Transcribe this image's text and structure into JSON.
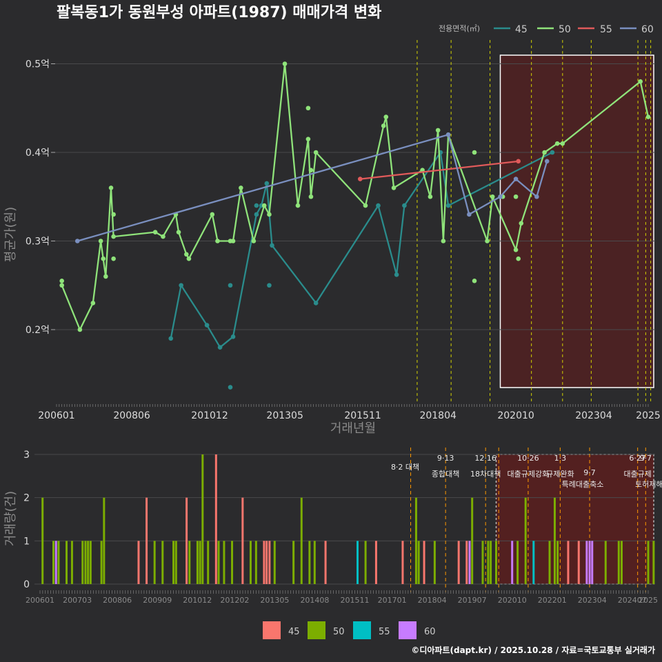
{
  "title": "팔복동1가 동원부성 아파트(1987) 매매가격 변화",
  "credit": "©디아파트(dapt.kr) / 2025.10.28 / 자료=국토교통부 실거래가",
  "colors": {
    "background": "#2b2b2d",
    "grid": "#4a4a4c",
    "s45": "#2a8c8c",
    "s50": "#8fe37a",
    "s55": "#e05a5a",
    "s60": "#7a8fbf",
    "bar45": "#f8766d",
    "bar50": "#7cae00",
    "bar55": "#00bfc4",
    "bar60": "#c77cff",
    "vline": "#d4d400",
    "vline_bottom": "#ff9900",
    "highlight": "#5a1f1f"
  },
  "chart_data": [
    {
      "type": "line",
      "title": "팔복동1가 동원부성 아파트(1987) 매매가격 변화",
      "xlabel": "거래년월",
      "ylabel": "평균가(원)",
      "ylim": [
        0.125,
        0.525
      ],
      "x_ticks": [
        "200601",
        "200806",
        "201012",
        "201305",
        "201511",
        "201804",
        "202010",
        "202304",
        "2025"
      ],
      "y_ticks": [
        {
          "value": 0.2,
          "label": "0.2억"
        },
        {
          "value": 0.3,
          "label": "0.3억"
        },
        {
          "value": 0.4,
          "label": "0.4억"
        },
        {
          "value": 0.5,
          "label": "0.5억"
        }
      ],
      "legend_title": "전용면적(㎡)",
      "legend_position": "top-right",
      "series": [
        {
          "name": "45",
          "color_key": "s45",
          "line": [
            [
              2009.67,
              0.19
            ],
            [
              2010.0,
              0.25
            ],
            [
              2010.83,
              0.205
            ],
            [
              2011.25,
              0.18
            ],
            [
              2011.67,
              0.192
            ],
            [
              2012.42,
              0.33
            ],
            [
              2012.58,
              0.34
            ],
            [
              2012.75,
              0.365
            ],
            [
              2012.92,
              0.295
            ],
            [
              2014.33,
              0.23
            ],
            [
              2016.33,
              0.34
            ],
            [
              2016.92,
              0.262
            ],
            [
              2017.17,
              0.34
            ],
            [
              2018.33,
              0.4
            ],
            [
              2018.58,
              0.34
            ],
            [
              2021.92,
              0.4
            ]
          ],
          "points": [
            [
              2011.58,
              0.25
            ],
            [
              2011.58,
              0.135
            ],
            [
              2012.42,
              0.34
            ],
            [
              2012.83,
              0.25
            ]
          ]
        },
        {
          "name": "50",
          "color_key": "s50",
          "line": [
            [
              2006.17,
              0.25
            ],
            [
              2006.75,
              0.2
            ],
            [
              2007.17,
              0.23
            ],
            [
              2007.42,
              0.3
            ],
            [
              2007.5,
              0.28
            ],
            [
              2007.58,
              0.26
            ],
            [
              2007.75,
              0.36
            ],
            [
              2007.83,
              0.305
            ],
            [
              2009.17,
              0.31
            ],
            [
              2009.42,
              0.305
            ],
            [
              2009.83,
              0.33
            ],
            [
              2009.92,
              0.31
            ],
            [
              2010.17,
              0.285
            ],
            [
              2010.25,
              0.28
            ],
            [
              2011.0,
              0.33
            ],
            [
              2011.17,
              0.3
            ],
            [
              2011.58,
              0.3
            ],
            [
              2011.67,
              0.3
            ],
            [
              2011.92,
              0.36
            ],
            [
              2012.33,
              0.3
            ],
            [
              2012.67,
              0.34
            ],
            [
              2012.83,
              0.33
            ],
            [
              2013.33,
              0.5
            ],
            [
              2013.75,
              0.34
            ],
            [
              2014.08,
              0.415
            ],
            [
              2014.17,
              0.35
            ],
            [
              2014.33,
              0.4
            ],
            [
              2015.92,
              0.34
            ],
            [
              2016.5,
              0.43
            ],
            [
              2016.58,
              0.44
            ],
            [
              2016.83,
              0.36
            ],
            [
              2017.75,
              0.38
            ],
            [
              2018.0,
              0.35
            ],
            [
              2018.25,
              0.425
            ],
            [
              2018.42,
              0.3
            ],
            [
              2018.58,
              0.42
            ],
            [
              2019.83,
              0.3
            ],
            [
              2020.0,
              0.35
            ],
            [
              2020.75,
              0.29
            ],
            [
              2020.92,
              0.32
            ],
            [
              2021.67,
              0.4
            ],
            [
              2022.08,
              0.41
            ],
            [
              2022.25,
              0.41
            ],
            [
              2024.75,
              0.48
            ],
            [
              2025.0,
              0.44
            ]
          ],
          "points": [
            [
              2006.17,
              0.255
            ],
            [
              2007.83,
              0.33
            ],
            [
              2007.83,
              0.28
            ],
            [
              2014.08,
              0.45
            ],
            [
              2014.17,
              0.38
            ],
            [
              2019.42,
              0.4
            ],
            [
              2019.42,
              0.255
            ],
            [
              2020.33,
              0.35
            ],
            [
              2020.75,
              0.35
            ],
            [
              2020.83,
              0.28
            ]
          ]
        },
        {
          "name": "55",
          "color_key": "s55",
          "line": [
            [
              2015.75,
              0.37
            ],
            [
              2020.83,
              0.39
            ]
          ],
          "points": []
        },
        {
          "name": "60",
          "color_key": "s60",
          "line": [
            [
              2006.67,
              0.3
            ],
            [
              2018.58,
              0.42
            ],
            [
              2019.25,
              0.33
            ],
            [
              2020.25,
              0.35
            ],
            [
              2020.75,
              0.37
            ],
            [
              2021.42,
              0.35
            ],
            [
              2021.75,
              0.39
            ]
          ],
          "points": []
        }
      ],
      "policy_lines": [
        2017.58,
        2018.67,
        2019.92,
        2021.25,
        2022.25,
        2023.17,
        2024.67,
        2024.92,
        2025.08
      ],
      "highlight_range": [
        2020.25,
        2025.0
      ]
    },
    {
      "type": "bar",
      "ylabel": "거래량(건)",
      "ylim": [
        0,
        3
      ],
      "y_ticks": [
        "0",
        "1",
        "2",
        "3"
      ],
      "x_ticks": [
        "200601",
        "200703",
        "200806",
        "200909",
        "201012",
        "201202",
        "201305",
        "201408",
        "201511",
        "201701",
        "201804",
        "201907",
        "202010",
        "202201",
        "202304",
        "202407",
        "2025"
      ],
      "legend_position": "bottom",
      "series_names": [
        "45",
        "50",
        "55",
        "60"
      ],
      "bars": [
        {
          "t": 2006.08,
          "s": "50",
          "v": 2
        },
        {
          "t": 2006.42,
          "s": "50",
          "v": 1
        },
        {
          "t": 2006.5,
          "s": "60",
          "v": 1
        },
        {
          "t": 2006.58,
          "s": "50",
          "v": 1
        },
        {
          "t": 2006.83,
          "s": "50",
          "v": 1
        },
        {
          "t": 2007.0,
          "s": "50",
          "v": 1
        },
        {
          "t": 2007.33,
          "s": "50",
          "v": 1
        },
        {
          "t": 2007.42,
          "s": "50",
          "v": 1
        },
        {
          "t": 2007.5,
          "s": "50",
          "v": 1
        },
        {
          "t": 2007.58,
          "s": "50",
          "v": 1
        },
        {
          "t": 2007.92,
          "s": "50",
          "v": 1
        },
        {
          "t": 2008.0,
          "s": "50",
          "v": 2
        },
        {
          "t": 2009.08,
          "s": "45",
          "v": 1
        },
        {
          "t": 2009.33,
          "s": "45",
          "v": 2
        },
        {
          "t": 2009.58,
          "s": "50",
          "v": 1
        },
        {
          "t": 2009.83,
          "s": "50",
          "v": 1
        },
        {
          "t": 2010.17,
          "s": "50",
          "v": 1
        },
        {
          "t": 2010.25,
          "s": "50",
          "v": 1
        },
        {
          "t": 2010.58,
          "s": "45",
          "v": 2
        },
        {
          "t": 2010.67,
          "s": "50",
          "v": 1
        },
        {
          "t": 2010.92,
          "s": "50",
          "v": 1
        },
        {
          "t": 2011.0,
          "s": "50",
          "v": 1
        },
        {
          "t": 2011.08,
          "s": "50",
          "v": 3
        },
        {
          "t": 2011.25,
          "s": "50",
          "v": 1
        },
        {
          "t": 2011.5,
          "s": "45",
          "v": 3
        },
        {
          "t": 2011.58,
          "s": "50",
          "v": 1
        },
        {
          "t": 2011.75,
          "s": "50",
          "v": 1
        },
        {
          "t": 2012.0,
          "s": "50",
          "v": 1
        },
        {
          "t": 2012.33,
          "s": "45",
          "v": 2
        },
        {
          "t": 2012.58,
          "s": "50",
          "v": 1
        },
        {
          "t": 2012.75,
          "s": "50",
          "v": 1
        },
        {
          "t": 2013.0,
          "s": "45",
          "v": 1
        },
        {
          "t": 2013.08,
          "s": "45",
          "v": 1
        },
        {
          "t": 2013.17,
          "s": "45",
          "v": 1
        },
        {
          "t": 2013.33,
          "s": "50",
          "v": 1
        },
        {
          "t": 2013.92,
          "s": "50",
          "v": 1
        },
        {
          "t": 2014.17,
          "s": "50",
          "v": 2
        },
        {
          "t": 2014.42,
          "s": "50",
          "v": 1
        },
        {
          "t": 2014.58,
          "s": "50",
          "v": 1
        },
        {
          "t": 2014.92,
          "s": "45",
          "v": 1
        },
        {
          "t": 2015.92,
          "s": "55",
          "v": 1
        },
        {
          "t": 2016.17,
          "s": "50",
          "v": 1
        },
        {
          "t": 2016.5,
          "s": "45",
          "v": 1
        },
        {
          "t": 2017.33,
          "s": "45",
          "v": 1
        },
        {
          "t": 2017.75,
          "s": "50",
          "v": 2
        },
        {
          "t": 2017.83,
          "s": "50",
          "v": 1
        },
        {
          "t": 2018.0,
          "s": "45",
          "v": 1
        },
        {
          "t": 2018.33,
          "s": "50",
          "v": 1
        },
        {
          "t": 2019.08,
          "s": "45",
          "v": 1
        },
        {
          "t": 2019.33,
          "s": "45",
          "v": 1
        },
        {
          "t": 2019.42,
          "s": "60",
          "v": 1
        },
        {
          "t": 2019.5,
          "s": "50",
          "v": 2
        },
        {
          "t": 2019.83,
          "s": "50",
          "v": 1
        },
        {
          "t": 2020.0,
          "s": "50",
          "v": 1
        },
        {
          "t": 2020.08,
          "s": "50",
          "v": 1
        },
        {
          "t": 2020.25,
          "s": "50",
          "v": 1
        },
        {
          "t": 2020.75,
          "s": "60",
          "v": 1
        },
        {
          "t": 2020.92,
          "s": "50",
          "v": 1
        },
        {
          "t": 2021.17,
          "s": "50",
          "v": 2
        },
        {
          "t": 2021.42,
          "s": "55",
          "v": 1
        },
        {
          "t": 2021.92,
          "s": "50",
          "v": 1
        },
        {
          "t": 2022.08,
          "s": "50",
          "v": 2
        },
        {
          "t": 2022.17,
          "s": "50",
          "v": 1
        },
        {
          "t": 2022.5,
          "s": "45",
          "v": 1
        },
        {
          "t": 2022.83,
          "s": "45",
          "v": 1
        },
        {
          "t": 2023.08,
          "s": "60",
          "v": 1
        },
        {
          "t": 2023.17,
          "s": "60",
          "v": 1
        },
        {
          "t": 2023.25,
          "s": "60",
          "v": 1
        },
        {
          "t": 2023.67,
          "s": "50",
          "v": 1
        },
        {
          "t": 2024.08,
          "s": "50",
          "v": 1
        },
        {
          "t": 2024.17,
          "s": "50",
          "v": 1
        },
        {
          "t": 2025.0,
          "s": "50",
          "v": 1
        },
        {
          "t": 2025.17,
          "s": "50",
          "v": 1
        }
      ],
      "policy_lines": [
        2017.58,
        2018.67,
        2019.92,
        2020.33,
        2021.25,
        2022.25,
        2023.17,
        2024.67,
        2024.92
      ],
      "annotations": [
        {
          "t": 2017.58,
          "date": "",
          "label": "8·2 대책"
        },
        {
          "t": 2018.67,
          "date": "9·13",
          "label": "종합대책"
        },
        {
          "t": 2019.92,
          "date": "12·16",
          "label": "18차대책"
        },
        {
          "t": 2021.25,
          "date": "10·26",
          "label": "대출규제강화"
        },
        {
          "t": 2022.25,
          "date": "1·3",
          "label": "규제완화"
        },
        {
          "t": 2023.17,
          "date": "",
          "label": "9·7"
        },
        {
          "t": 2023.17,
          "date": "",
          "label": "특례대출축소"
        },
        {
          "t": 2024.67,
          "date": "6·27",
          "label": "대출규제"
        },
        {
          "t": 2024.92,
          "date": "9·7",
          "label": "토허제해제"
        }
      ],
      "highlight_range": [
        2020.25,
        2025.0
      ]
    }
  ]
}
